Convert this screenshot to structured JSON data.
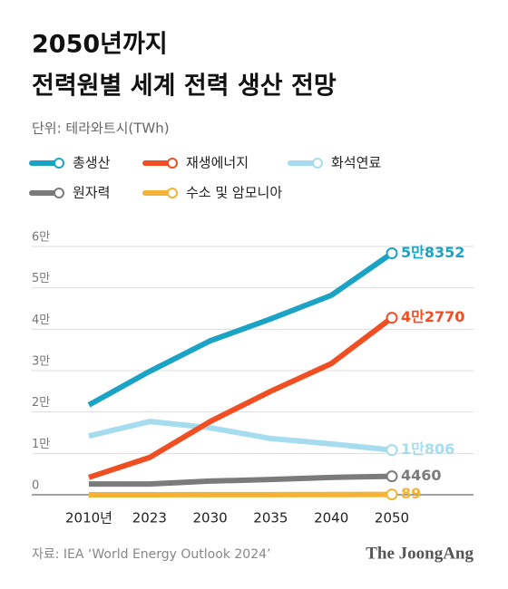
{
  "chart_data": {
    "type": "line",
    "title": [
      "2050년까지",
      "전력원별 세계 전력 생산 전망"
    ],
    "subtitle": "단위: 테라와트시(TWh)",
    "source": "자료: IEA ‘World Energy Outlook 2024’",
    "brand": "The JoongAng",
    "categories": [
      "2010년",
      "2023",
      "2030",
      "2035",
      "2040",
      "2050"
    ],
    "series": [
      {
        "name": "총생산",
        "color": "#1ba3c6",
        "values": [
          21700,
          29800,
          37200,
          42500,
          48200,
          58352
        ],
        "value_labels": [
          null,
          null,
          null,
          null,
          null,
          "5만8352"
        ]
      },
      {
        "name": "재생에너지",
        "color": "#f04e23",
        "values": [
          4200,
          9000,
          17700,
          25000,
          31700,
          42770
        ],
        "value_labels": [
          null,
          null,
          null,
          null,
          null,
          "4만2770"
        ]
      },
      {
        "name": "화석연료",
        "color": "#a6dcef",
        "values": [
          14200,
          17700,
          16200,
          13600,
          12300,
          10806
        ],
        "value_labels": [
          null,
          null,
          null,
          null,
          null,
          "1만806"
        ]
      },
      {
        "name": "원자력",
        "color": "#7b7b7b",
        "values": [
          2600,
          2600,
          3300,
          3700,
          4200,
          4460
        ],
        "value_labels": [
          null,
          null,
          null,
          null,
          null,
          "4460"
        ]
      },
      {
        "name": "수소 및 암모니아",
        "color": "#f5b335",
        "values": [
          0,
          0,
          20,
          40,
          60,
          89
        ],
        "value_labels": [
          null,
          null,
          null,
          null,
          null,
          "89"
        ]
      }
    ],
    "ylim": [
      0,
      60000
    ],
    "yticks": [
      0,
      {
        "value": 10000,
        "label": "1만"
      },
      {
        "value": 20000,
        "label": "2만"
      },
      {
        "value": 30000,
        "label": "3만"
      },
      {
        "value": 40000,
        "label": "4만"
      },
      {
        "value": 50000,
        "label": "5만"
      },
      {
        "value": 60000,
        "label": "6만"
      }
    ],
    "grid": true
  }
}
